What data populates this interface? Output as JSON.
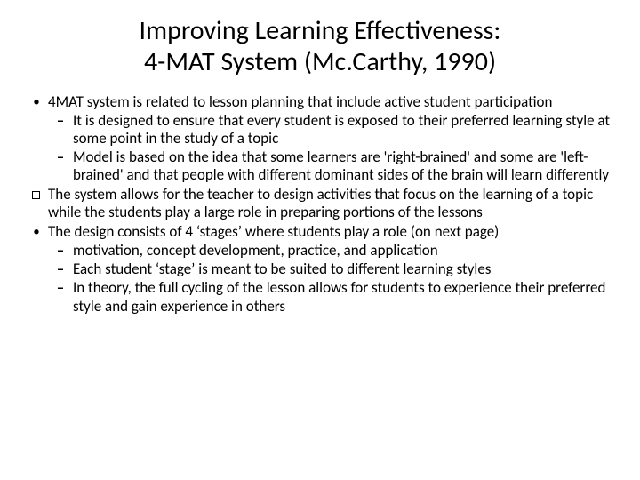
{
  "title_line1": "Improving Learning Effectiveness:",
  "title_line2": "4-MAT System (Mc.Carthy, 1990)",
  "items": {
    "i0": {
      "text": "4MAT system is related to lesson planning that include active student participation",
      "sub": {
        "s0": "It is designed to ensure that every student is exposed to their preferred learning style at some point in the study of a topic",
        "s1": "Model is based on the idea that some learners are 'right-brained' and some are 'left-brained' and that people with different dominant sides of the brain will learn differently"
      }
    },
    "i1": {
      "text": "The system allows for the teacher to design activities that focus on the learning of a topic while the students play a large role in preparing portions of the lessons"
    },
    "i2": {
      "text": "The design consists of 4 ‘stages’ where students play a role (on next page)",
      "sub": {
        "s0": "motivation, concept development, practice, and application",
        "s1": "Each student ‘stage’ is meant to be suited to different learning styles",
        "s2": "In theory, the full cycling of the lesson allows for students to experience their preferred style and gain experience in others"
      }
    }
  },
  "colors": {
    "text": "#000000",
    "background": "#ffffff"
  },
  "fonts": {
    "title_pt": 30,
    "body_pt": 17
  }
}
